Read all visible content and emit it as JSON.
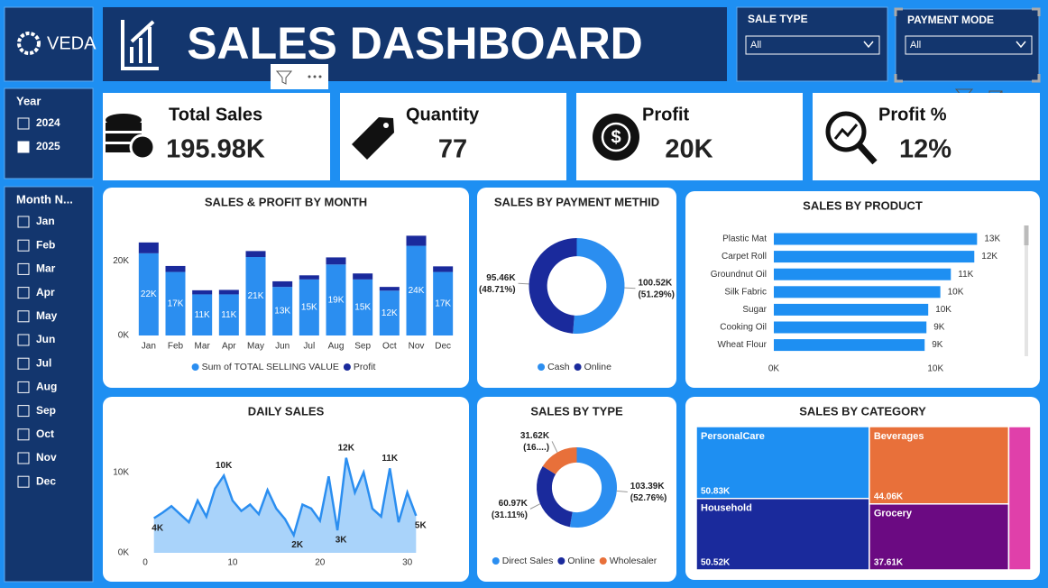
{
  "header": {
    "logo": "VEDA",
    "title": "SALES DASHBOARD"
  },
  "slicers": [
    {
      "label": "SALE TYPE",
      "value": "All"
    },
    {
      "label": "PAYMENT MODE",
      "value": "All"
    }
  ],
  "year_filter": {
    "title": "Year",
    "items": [
      "2024",
      "2025"
    ],
    "selected": "2025"
  },
  "month_filter": {
    "title": "Month N...",
    "items": [
      "Jan",
      "Feb",
      "Mar",
      "Apr",
      "May",
      "Jun",
      "Jul",
      "Aug",
      "Sep",
      "Oct",
      "Nov",
      "Dec"
    ]
  },
  "kpis": [
    {
      "label": "Total Sales",
      "value": "195.98K"
    },
    {
      "label": "Quantity",
      "value": "77"
    },
    {
      "label": "Profit",
      "value": "20K"
    },
    {
      "label": "Profit %",
      "value": "12%"
    }
  ],
  "chart_data": [
    {
      "type": "stacked_bar",
      "title": "SALES & PROFIT BY MONTH",
      "categories": [
        "Jan",
        "Feb",
        "Mar",
        "Apr",
        "May",
        "Jun",
        "Jul",
        "Aug",
        "Sep",
        "Oct",
        "Nov",
        "Dec"
      ],
      "series": [
        {
          "name": "Sum of TOTAL SELLING VALUE",
          "color": "#2b8ef0",
          "values": [
            22000,
            17000,
            11000,
            11000,
            21000,
            13000,
            15000,
            19000,
            15000,
            12000,
            24000,
            17000
          ],
          "value_labels": [
            "22K",
            "17K",
            "11K",
            "11K",
            "21K",
            "13K",
            "15K",
            "19K",
            "15K",
            "12K",
            "24K",
            "17K"
          ]
        },
        {
          "name": "Profit",
          "color": "#1a2a9c",
          "values": [
            2900,
            1600,
            1100,
            1200,
            1600,
            1500,
            1100,
            1900,
            1600,
            1000,
            2700,
            1500
          ]
        }
      ],
      "ylim": [
        0,
        28000
      ],
      "yticks": [
        {
          "value": 0,
          "label": "0K"
        },
        {
          "value": 20000,
          "label": "20K"
        }
      ]
    },
    {
      "type": "donut",
      "title": "SALES BY PAYMENT METHID",
      "categories": [
        "Cash",
        "Online"
      ],
      "values": [
        100520,
        95460
      ],
      "value_labels": [
        "100.52K",
        "95.46K"
      ],
      "percentages": [
        51.29,
        48.71
      ],
      "percentage_labels": [
        "(51.29%)",
        "(48.71%)"
      ],
      "colors": [
        "#2b8ef0",
        "#1a2a9c"
      ]
    },
    {
      "type": "hbar",
      "title": "SALES BY PRODUCT",
      "categories": [
        "Plastic Mat",
        "Carpet Roll",
        "Groundnut Oil",
        "Silk Fabric",
        "Sugar",
        "Cooking Oil",
        "Wheat Flour"
      ],
      "values": [
        12570,
        12400,
        10950,
        10300,
        9550,
        9440,
        9330
      ],
      "value_labels": [
        "13K",
        "12K",
        "11K",
        "10K",
        "10K",
        "9K",
        "9K"
      ],
      "color": "#1e8ff2",
      "xlim": [
        0,
        13500
      ],
      "xticks": [
        {
          "value": 0,
          "label": "0K"
        },
        {
          "value": 10000,
          "label": "10K"
        }
      ]
    },
    {
      "type": "area",
      "title": "DAILY SALES",
      "x": [
        1,
        2,
        3,
        4,
        5,
        6,
        7,
        8,
        9,
        10,
        11,
        12,
        13,
        14,
        15,
        16,
        17,
        18,
        19,
        20,
        21,
        22,
        23,
        24,
        25,
        26,
        27,
        28,
        29,
        30,
        31
      ],
      "values": [
        4300,
        5000,
        5800,
        4800,
        3800,
        6500,
        4500,
        8000,
        9600,
        6500,
        5200,
        6000,
        4800,
        7800,
        5500,
        4200,
        2200,
        6000,
        5500,
        4000,
        9500,
        2800,
        11800,
        7500,
        10000,
        5500,
        4500,
        10500,
        3800,
        7500,
        4600
      ],
      "value_labels": [
        "4K",
        null,
        null,
        null,
        null,
        null,
        null,
        null,
        "10K",
        null,
        null,
        null,
        null,
        null,
        null,
        null,
        "2K",
        null,
        null,
        null,
        null,
        "3K",
        "12K",
        null,
        null,
        null,
        null,
        "11K",
        null,
        null,
        "5K"
      ],
      "color": "#2b8ef0",
      "fill": "#a9d3fa",
      "xlim": [
        0,
        32
      ],
      "xticks": [
        0,
        10,
        20,
        30
      ],
      "ylim": [
        0,
        13000
      ],
      "yticks": [
        {
          "value": 0,
          "label": "0K"
        },
        {
          "value": 10000,
          "label": "10K"
        }
      ]
    },
    {
      "type": "donut",
      "title": "SALES BY TYPE",
      "categories": [
        "Direct Sales",
        "Online",
        "Wholesaler"
      ],
      "values": [
        103390,
        60970,
        31620
      ],
      "value_labels": [
        "103.39K",
        "60.97K",
        "31.62K"
      ],
      "percentages": [
        52.76,
        31.11,
        16.13
      ],
      "percentage_labels": [
        "(52.76%)",
        "(31.11%)",
        "(16....)"
      ],
      "colors": [
        "#2b8ef0",
        "#1a2a9c",
        "#e8703a"
      ]
    },
    {
      "type": "treemap",
      "title": "SALES BY CATEGORY",
      "categories": [
        "PersonalCare",
        "Household",
        "Beverages",
        "Grocery",
        null
      ],
      "values": [
        50830,
        50520,
        44060,
        37610,
        12960
      ],
      "value_labels": [
        "50.83K",
        "50.52K",
        "44.06K",
        "37.61K",
        null
      ],
      "colors": [
        "#1e8ff2",
        "#1a2a9c",
        "#e8703a",
        "#6b0a82",
        "#e040aa"
      ]
    }
  ]
}
